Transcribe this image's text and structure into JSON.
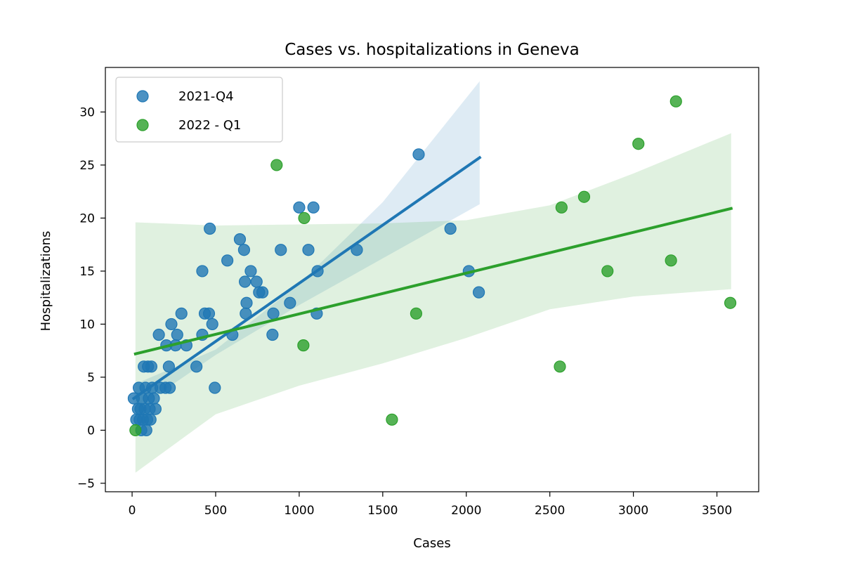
{
  "chart_data": {
    "type": "scatter",
    "title": "Cases vs. hospitalizations in Geneva",
    "xlabel": "Cases",
    "ylabel": "Hospitalizations",
    "xlim": [
      -160,
      3750
    ],
    "ylim": [
      -5.8,
      34.2
    ],
    "xticks": [
      0,
      500,
      1000,
      1500,
      2000,
      2500,
      3000,
      3500
    ],
    "yticks": [
      -5,
      0,
      5,
      10,
      15,
      20,
      25,
      30
    ],
    "xtick_labels": [
      "0",
      "500",
      "1000",
      "1500",
      "2000",
      "2500",
      "3000",
      "3500"
    ],
    "ytick_labels": [
      "−5",
      "0",
      "5",
      "10",
      "15",
      "20",
      "25",
      "30"
    ],
    "legend_position": "top-left",
    "grid": false,
    "series": [
      {
        "name": "2021-Q4",
        "color": "#1f77b4",
        "points": [
          [
            10,
            3
          ],
          [
            25,
            1
          ],
          [
            35,
            2
          ],
          [
            40,
            4
          ],
          [
            45,
            1
          ],
          [
            50,
            2
          ],
          [
            55,
            0
          ],
          [
            60,
            3
          ],
          [
            65,
            1
          ],
          [
            70,
            6
          ],
          [
            75,
            2
          ],
          [
            80,
            4
          ],
          [
            85,
            0
          ],
          [
            90,
            1
          ],
          [
            95,
            6
          ],
          [
            100,
            3
          ],
          [
            105,
            2
          ],
          [
            110,
            1
          ],
          [
            115,
            6
          ],
          [
            120,
            4
          ],
          [
            130,
            3
          ],
          [
            140,
            2
          ],
          [
            160,
            9
          ],
          [
            170,
            4
          ],
          [
            200,
            4
          ],
          [
            205,
            8
          ],
          [
            220,
            6
          ],
          [
            225,
            4
          ],
          [
            235,
            10
          ],
          [
            260,
            8
          ],
          [
            270,
            9
          ],
          [
            295,
            11
          ],
          [
            325,
            8
          ],
          [
            385,
            6
          ],
          [
            420,
            9
          ],
          [
            420,
            15
          ],
          [
            435,
            11
          ],
          [
            460,
            11
          ],
          [
            465,
            19
          ],
          [
            480,
            10
          ],
          [
            495,
            4
          ],
          [
            570,
            16
          ],
          [
            600,
            9
          ],
          [
            645,
            18
          ],
          [
            670,
            17
          ],
          [
            675,
            14
          ],
          [
            680,
            11
          ],
          [
            685,
            12
          ],
          [
            710,
            15
          ],
          [
            745,
            14
          ],
          [
            760,
            13
          ],
          [
            780,
            13
          ],
          [
            840,
            9
          ],
          [
            845,
            11
          ],
          [
            890,
            17
          ],
          [
            945,
            12
          ],
          [
            1000,
            21
          ],
          [
            1055,
            17
          ],
          [
            1085,
            21
          ],
          [
            1105,
            11
          ],
          [
            1110,
            15
          ],
          [
            1345,
            17
          ],
          [
            1715,
            26
          ],
          [
            1905,
            19
          ],
          [
            2015,
            15
          ],
          [
            2075,
            13
          ]
        ],
        "fit_line": [
          [
            10,
            3.0
          ],
          [
            2080,
            25.7
          ]
        ],
        "ci_upper": [
          [
            10,
            4.3
          ],
          [
            500,
            7.6
          ],
          [
            1000,
            13.8
          ],
          [
            1500,
            21.5
          ],
          [
            2080,
            32.9
          ]
        ],
        "ci_lower": [
          [
            10,
            1.8
          ],
          [
            500,
            7.1
          ],
          [
            1000,
            11.8
          ],
          [
            1500,
            16.2
          ],
          [
            2080,
            21.3
          ]
        ]
      },
      {
        "name": "2022 - Q1",
        "color": "#2ca02c",
        "points": [
          [
            20,
            0
          ],
          [
            865,
            25
          ],
          [
            1025,
            8
          ],
          [
            1030,
            20
          ],
          [
            1555,
            1
          ],
          [
            1700,
            11
          ],
          [
            2560,
            6
          ],
          [
            2570,
            21
          ],
          [
            2705,
            22
          ],
          [
            2845,
            15
          ],
          [
            3030,
            27
          ],
          [
            3225,
            16
          ],
          [
            3255,
            31
          ],
          [
            3580,
            12
          ]
        ],
        "fit_line": [
          [
            20,
            7.2
          ],
          [
            3585,
            20.9
          ]
        ],
        "ci_upper": [
          [
            20,
            19.6
          ],
          [
            500,
            19.3
          ],
          [
            1000,
            19.4
          ],
          [
            1500,
            19.5
          ],
          [
            2000,
            19.8
          ],
          [
            2500,
            21.2
          ],
          [
            3000,
            24.2
          ],
          [
            3585,
            28.0
          ]
        ],
        "ci_lower": [
          [
            20,
            -4.0
          ],
          [
            500,
            1.5
          ],
          [
            1000,
            4.2
          ],
          [
            1500,
            6.3
          ],
          [
            2000,
            8.7
          ],
          [
            2500,
            11.4
          ],
          [
            3000,
            12.6
          ],
          [
            3585,
            13.3
          ]
        ]
      }
    ]
  }
}
